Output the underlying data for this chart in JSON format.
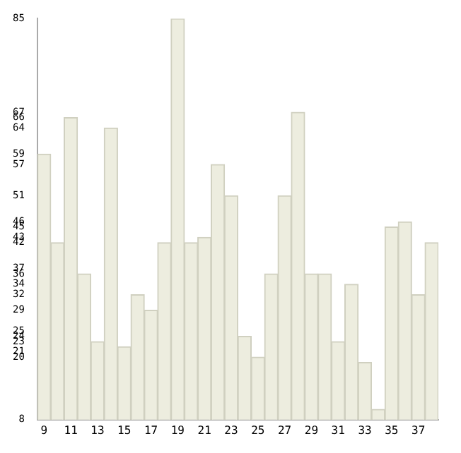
{
  "chart_data": {
    "type": "bar",
    "categories": [
      "9",
      null,
      "11",
      null,
      "13",
      null,
      "15",
      null,
      "17",
      null,
      "19",
      null,
      "21",
      null,
      "23",
      null,
      "25",
      null,
      "27",
      null,
      "29",
      null,
      "31",
      null,
      "33",
      null,
      "35",
      null,
      "37",
      null
    ],
    "values": [
      59,
      42,
      66,
      36,
      23,
      64,
      22,
      32,
      29,
      42,
      85,
      42,
      43,
      57,
      51,
      24,
      20,
      36,
      51,
      67,
      36,
      36,
      23,
      34,
      19,
      10,
      45,
      46,
      32,
      42
    ],
    "color": "#ededdf",
    "ylim": [
      8,
      85
    ],
    "yticks": [
      8,
      20,
      21,
      23,
      24,
      25,
      29,
      32,
      34,
      36,
      37,
      42,
      43,
      45,
      46,
      51,
      57,
      59,
      64,
      66,
      67,
      85
    ],
    "grid": false
  }
}
